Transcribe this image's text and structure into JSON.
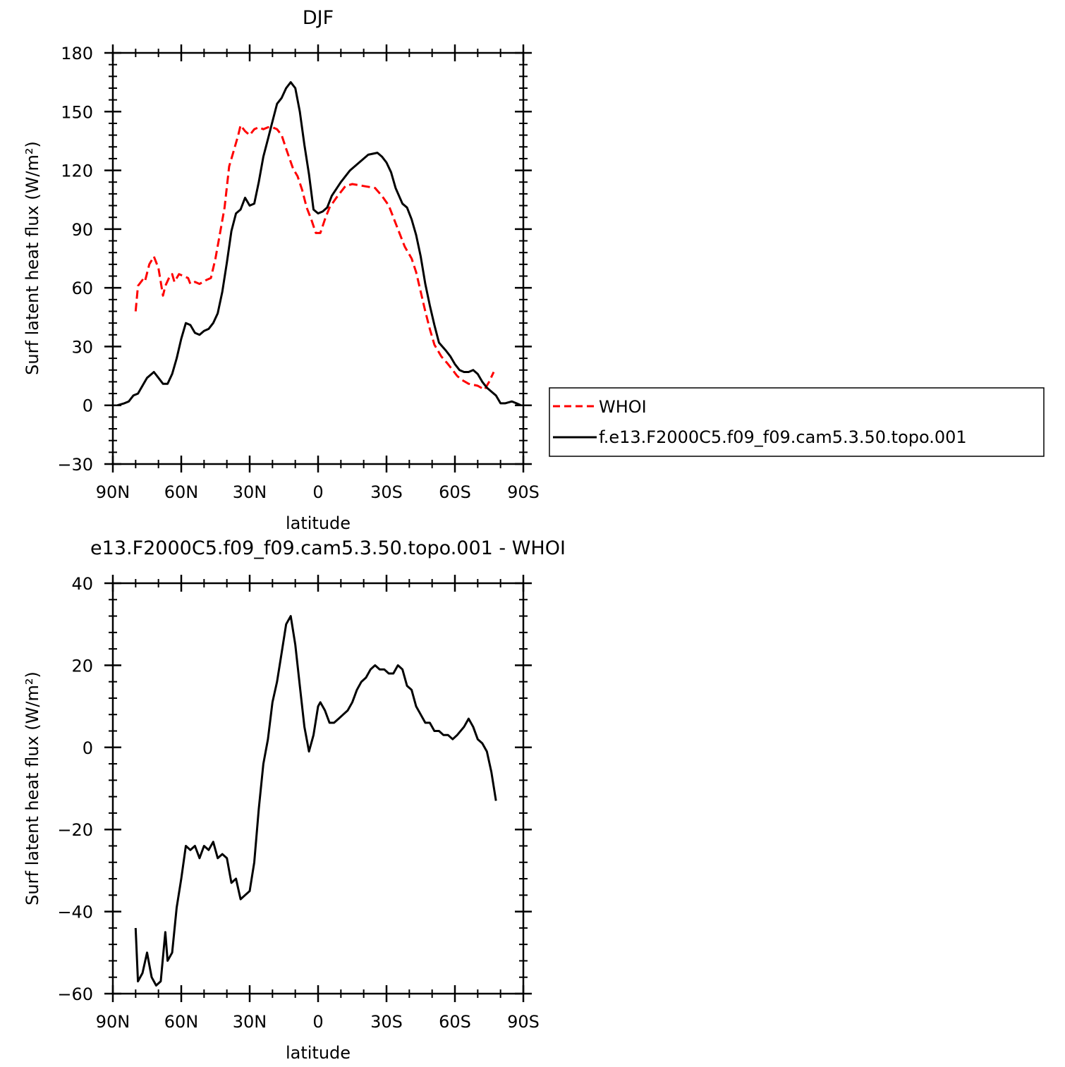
{
  "chart_data": [
    {
      "type": "line",
      "title": "DJF",
      "xlabel": "latitude",
      "ylabel": "Surf latent heat flux (W/m²)",
      "xlim": [
        90,
        -90
      ],
      "ylim": [
        -30,
        180
      ],
      "xticks": [
        {
          "v": 90,
          "label": "90N"
        },
        {
          "v": 60,
          "label": "60N"
        },
        {
          "v": 30,
          "label": "30N"
        },
        {
          "v": 0,
          "label": "0"
        },
        {
          "v": -30,
          "label": "30S"
        },
        {
          "v": -60,
          "label": "60S"
        },
        {
          "v": -90,
          "label": "90S"
        }
      ],
      "yticks": [
        {
          "v": -30,
          "label": "−30"
        },
        {
          "v": 0,
          "label": "0"
        },
        {
          "v": 30,
          "label": "30"
        },
        {
          "v": 60,
          "label": "60"
        },
        {
          "v": 90,
          "label": "90"
        },
        {
          "v": 120,
          "label": "120"
        },
        {
          "v": 150,
          "label": "150"
        },
        {
          "v": 180,
          "label": "180"
        }
      ],
      "legend_position": "right",
      "series": [
        {
          "name": "WHOI",
          "color": "#ff0000",
          "dash": "dashed",
          "points": [
            [
              80,
              48
            ],
            [
              79,
              61
            ],
            [
              77,
              64
            ],
            [
              76,
              63
            ],
            [
              74,
              72
            ],
            [
              72,
              76
            ],
            [
              70,
              70
            ],
            [
              68,
              56
            ],
            [
              67,
              61
            ],
            [
              65,
              66
            ],
            [
              64,
              67
            ],
            [
              63,
              63
            ],
            [
              61,
              67
            ],
            [
              59,
              66
            ],
            [
              57,
              65
            ],
            [
              56,
              62
            ],
            [
              54,
              63
            ],
            [
              52,
              62
            ],
            [
              49,
              64
            ],
            [
              47,
              65
            ],
            [
              45,
              75
            ],
            [
              43,
              88
            ],
            [
              41,
              101
            ],
            [
              39,
              122
            ],
            [
              37,
              130
            ],
            [
              35,
              138
            ],
            [
              34,
              143
            ],
            [
              32,
              140
            ],
            [
              30,
              138
            ],
            [
              28,
              141
            ],
            [
              26,
              142
            ],
            [
              24,
              141
            ],
            [
              22,
              142
            ],
            [
              20,
              142
            ],
            [
              18,
              141
            ],
            [
              16,
              138
            ],
            [
              14,
              131
            ],
            [
              11,
              121
            ],
            [
              9,
              117
            ],
            [
              7,
              110
            ],
            [
              5,
              101
            ],
            [
              3,
              95
            ],
            [
              1,
              88
            ],
            [
              -1,
              88
            ],
            [
              -3,
              95
            ],
            [
              -5,
              101
            ],
            [
              -8,
              106
            ],
            [
              -12,
              112
            ],
            [
              -15,
              113
            ],
            [
              -20,
              112
            ],
            [
              -25,
              111
            ],
            [
              -28,
              107
            ],
            [
              -31,
              102
            ],
            [
              -34,
              93
            ],
            [
              -36,
              87
            ],
            [
              -38,
              81
            ],
            [
              -41,
              75
            ],
            [
              -43,
              68
            ],
            [
              -45,
              58
            ],
            [
              -47,
              48
            ],
            [
              -49,
              39
            ],
            [
              -51,
              31
            ],
            [
              -54,
              25
            ],
            [
              -57,
              21
            ],
            [
              -59,
              18
            ],
            [
              -61,
              15
            ],
            [
              -63,
              13
            ],
            [
              -66,
              11
            ],
            [
              -70,
              10
            ],
            [
              -73,
              8
            ],
            [
              -75,
              12
            ],
            [
              -77,
              17
            ]
          ]
        },
        {
          "name": "f.e13.F2000C5.f09_f09.cam5.3.50.topo.001",
          "color": "#000000",
          "dash": "solid",
          "points": [
            [
              88,
              0
            ],
            [
              85,
              1
            ],
            [
              83,
              2
            ],
            [
              81,
              5
            ],
            [
              79,
              6
            ],
            [
              77,
              10
            ],
            [
              75,
              14
            ],
            [
              72,
              17
            ],
            [
              70,
              14
            ],
            [
              68,
              11
            ],
            [
              66,
              11
            ],
            [
              64,
              16
            ],
            [
              62,
              24
            ],
            [
              60,
              34
            ],
            [
              58,
              42
            ],
            [
              56,
              41
            ],
            [
              54,
              37
            ],
            [
              52,
              36
            ],
            [
              50,
              38
            ],
            [
              48,
              39
            ],
            [
              46,
              42
            ],
            [
              44,
              47
            ],
            [
              42,
              58
            ],
            [
              40,
              73
            ],
            [
              38,
              89
            ],
            [
              36,
              98
            ],
            [
              34,
              100
            ],
            [
              32,
              106
            ],
            [
              30,
              102
            ],
            [
              28,
              103
            ],
            [
              26,
              114
            ],
            [
              24,
              127
            ],
            [
              22,
              136
            ],
            [
              20,
              145
            ],
            [
              18,
              154
            ],
            [
              16,
              157
            ],
            [
              14,
              162
            ],
            [
              12,
              165
            ],
            [
              10,
              162
            ],
            [
              8,
              150
            ],
            [
              6,
              133
            ],
            [
              4,
              118
            ],
            [
              2,
              100
            ],
            [
              0,
              98
            ],
            [
              -2,
              99
            ],
            [
              -4,
              101
            ],
            [
              -6,
              107
            ],
            [
              -10,
              114
            ],
            [
              -14,
              120
            ],
            [
              -18,
              124
            ],
            [
              -22,
              128
            ],
            [
              -26,
              129
            ],
            [
              -28,
              127
            ],
            [
              -30,
              124
            ],
            [
              -32,
              119
            ],
            [
              -34,
              111
            ],
            [
              -37,
              103
            ],
            [
              -39,
              101
            ],
            [
              -41,
              95
            ],
            [
              -43,
              87
            ],
            [
              -45,
              76
            ],
            [
              -47,
              62
            ],
            [
              -49,
              51
            ],
            [
              -51,
              41
            ],
            [
              -53,
              32
            ],
            [
              -56,
              28
            ],
            [
              -58,
              25
            ],
            [
              -60,
              21
            ],
            [
              -62,
              18
            ],
            [
              -64,
              17
            ],
            [
              -66,
              17
            ],
            [
              -68,
              18
            ],
            [
              -70,
              16
            ],
            [
              -72,
              12
            ],
            [
              -74,
              9
            ],
            [
              -76,
              7
            ],
            [
              -78,
              5
            ],
            [
              -80,
              1
            ],
            [
              -82,
              1
            ],
            [
              -85,
              2
            ],
            [
              -87,
              1
            ],
            [
              -89,
              0
            ]
          ]
        }
      ]
    },
    {
      "type": "line",
      "title": "e13.F2000C5.f09_f09.cam5.3.50.topo.001  -  WHOI",
      "xlabel": "latitude",
      "ylabel": "Surf latent heat flux (W/m²)",
      "xlim": [
        90,
        -90
      ],
      "ylim": [
        -60,
        40
      ],
      "xticks": [
        {
          "v": 90,
          "label": "90N"
        },
        {
          "v": 60,
          "label": "60N"
        },
        {
          "v": 30,
          "label": "30N"
        },
        {
          "v": 0,
          "label": "0"
        },
        {
          "v": -30,
          "label": "30S"
        },
        {
          "v": -60,
          "label": "60S"
        },
        {
          "v": -90,
          "label": "90S"
        }
      ],
      "yticks": [
        {
          "v": -60,
          "label": "−60"
        },
        {
          "v": -40,
          "label": "−40"
        },
        {
          "v": -20,
          "label": "−20"
        },
        {
          "v": 0,
          "label": "0"
        },
        {
          "v": 20,
          "label": "20"
        },
        {
          "v": 40,
          "label": "40"
        }
      ],
      "series": [
        {
          "color": "#000000",
          "dash": "solid",
          "points": [
            [
              80,
              -44
            ],
            [
              79,
              -57
            ],
            [
              77,
              -55
            ],
            [
              75,
              -50
            ],
            [
              73,
              -56
            ],
            [
              71,
              -58
            ],
            [
              69,
              -57
            ],
            [
              67,
              -45
            ],
            [
              66,
              -52
            ],
            [
              64,
              -50
            ],
            [
              62,
              -39
            ],
            [
              60,
              -32
            ],
            [
              58,
              -24
            ],
            [
              56,
              -25
            ],
            [
              54,
              -24
            ],
            [
              52,
              -27
            ],
            [
              50,
              -24
            ],
            [
              48,
              -25
            ],
            [
              46,
              -23
            ],
            [
              44,
              -27
            ],
            [
              42,
              -26
            ],
            [
              40,
              -27
            ],
            [
              38,
              -33
            ],
            [
              36,
              -32
            ],
            [
              34,
              -37
            ],
            [
              32,
              -36
            ],
            [
              30,
              -35
            ],
            [
              28,
              -28
            ],
            [
              26,
              -15
            ],
            [
              24,
              -4
            ],
            [
              22,
              2
            ],
            [
              20,
              11
            ],
            [
              18,
              16
            ],
            [
              16,
              23
            ],
            [
              14,
              30
            ],
            [
              12,
              32
            ],
            [
              10,
              25
            ],
            [
              8,
              15
            ],
            [
              6,
              5
            ],
            [
              4,
              -1
            ],
            [
              2,
              3
            ],
            [
              0,
              10
            ],
            [
              -1,
              11
            ],
            [
              -3,
              9
            ],
            [
              -5,
              6
            ],
            [
              -7,
              6
            ],
            [
              -9,
              7
            ],
            [
              -11,
              8
            ],
            [
              -13,
              9
            ],
            [
              -15,
              11
            ],
            [
              -17,
              14
            ],
            [
              -19,
              16
            ],
            [
              -21,
              17
            ],
            [
              -23,
              19
            ],
            [
              -25,
              20
            ],
            [
              -27,
              19
            ],
            [
              -29,
              19
            ],
            [
              -31,
              18
            ],
            [
              -33,
              18
            ],
            [
              -35,
              20
            ],
            [
              -37,
              19
            ],
            [
              -39,
              15
            ],
            [
              -41,
              14
            ],
            [
              -43,
              10
            ],
            [
              -45,
              8
            ],
            [
              -47,
              6
            ],
            [
              -49,
              6
            ],
            [
              -51,
              4
            ],
            [
              -53,
              4
            ],
            [
              -55,
              3
            ],
            [
              -57,
              3
            ],
            [
              -59,
              2
            ],
            [
              -61,
              3
            ],
            [
              -64,
              5
            ],
            [
              -66,
              7
            ],
            [
              -68,
              5
            ],
            [
              -70,
              2
            ],
            [
              -72,
              1
            ],
            [
              -74,
              -1
            ],
            [
              -76,
              -6
            ],
            [
              -78,
              -13
            ]
          ]
        }
      ]
    }
  ]
}
